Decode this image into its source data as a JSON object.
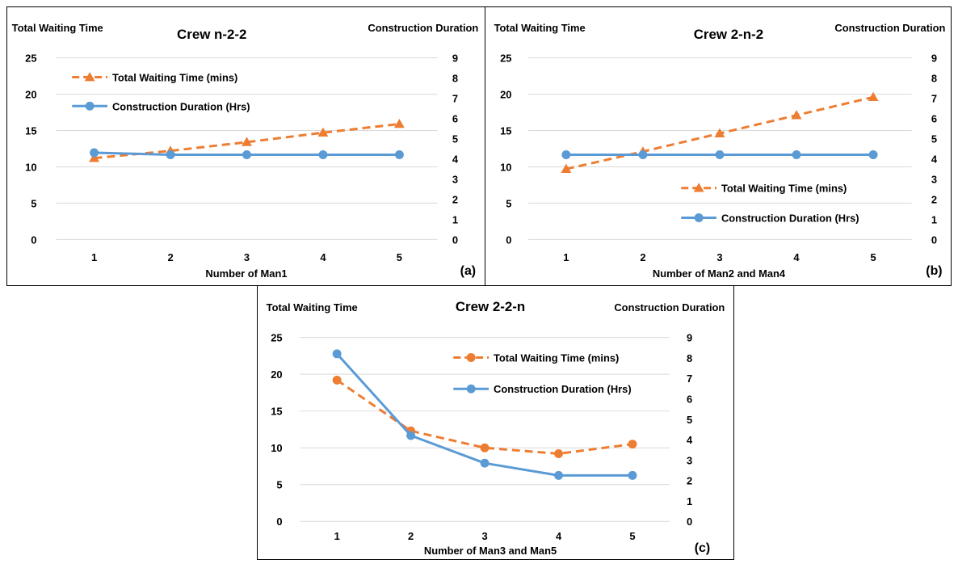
{
  "colors": {
    "waiting": "#ED7D31",
    "duration": "#5B9BD5",
    "grid": "#D9D9D9"
  },
  "chart_data": [
    {
      "type": "line",
      "panel_tag": "(a)",
      "title": "Crew n-2-2",
      "ylabel_left": "Total Waiting Time",
      "ylabel_right": "Construction Duration",
      "xlabel": "Number of Man1",
      "categories": [
        "1",
        "2",
        "3",
        "4",
        "5"
      ],
      "ylim_left": [
        0,
        25
      ],
      "yticks_left": [
        "0",
        "5",
        "10",
        "15",
        "20",
        "25"
      ],
      "ylim_right": [
        0,
        9
      ],
      "yticks_right": [
        "0",
        "1",
        "2",
        "3",
        "4",
        "5",
        "6",
        "7",
        "8",
        "9"
      ],
      "grid": "horizontal",
      "legend": "top-left",
      "series": [
        {
          "name": "Total Waiting Time (mins)",
          "axis": "left",
          "style": "dashed",
          "marker": "triangle",
          "color": "#ED7D31",
          "values": [
            11.2,
            12.2,
            13.4,
            14.7,
            15.9
          ]
        },
        {
          "name": "Construction Duration (Hrs)",
          "axis": "right",
          "style": "solid",
          "marker": "circle",
          "color": "#5B9BD5",
          "values": [
            4.3,
            4.2,
            4.2,
            4.2,
            4.2
          ]
        }
      ]
    },
    {
      "type": "line",
      "panel_tag": "(b)",
      "title": "Crew 2-n-2",
      "ylabel_left": "Total Waiting Time",
      "ylabel_right": "Construction Duration",
      "xlabel": "Number of Man2 and Man4",
      "categories": [
        "1",
        "2",
        "3",
        "4",
        "5"
      ],
      "ylim_left": [
        0,
        25
      ],
      "yticks_left": [
        "0",
        "5",
        "10",
        "15",
        "20",
        "25"
      ],
      "ylim_right": [
        0,
        9
      ],
      "yticks_right": [
        "0",
        "1",
        "2",
        "3",
        "4",
        "5",
        "6",
        "7",
        "8",
        "9"
      ],
      "grid": "horizontal",
      "legend": "bottom-right",
      "series": [
        {
          "name": "Total Waiting Time (mins)",
          "axis": "left",
          "style": "dashed",
          "marker": "triangle",
          "color": "#ED7D31",
          "values": [
            9.7,
            12.1,
            14.6,
            17.1,
            19.6
          ]
        },
        {
          "name": "Construction Duration (Hrs)",
          "axis": "right",
          "style": "solid",
          "marker": "circle",
          "color": "#5B9BD5",
          "values": [
            4.2,
            4.2,
            4.2,
            4.2,
            4.2
          ]
        }
      ]
    },
    {
      "type": "line",
      "panel_tag": "(c)",
      "title": "Crew 2-2-n",
      "ylabel_left": "Total Waiting Time",
      "ylabel_right": "Construction Duration",
      "xlabel": "Number of Man3 and Man5",
      "categories": [
        "1",
        "2",
        "3",
        "4",
        "5"
      ],
      "ylim_left": [
        0,
        25
      ],
      "yticks_left": [
        "0",
        "5",
        "10",
        "15",
        "20",
        "25"
      ],
      "ylim_right": [
        0,
        9
      ],
      "yticks_right": [
        "0",
        "1",
        "2",
        "3",
        "4",
        "5",
        "6",
        "7",
        "8",
        "9"
      ],
      "grid": "horizontal",
      "legend": "top-right",
      "series": [
        {
          "name": "Total Waiting Time (mins)",
          "axis": "left",
          "style": "dashed",
          "marker": "circle",
          "color": "#ED7D31",
          "values": [
            19.2,
            12.3,
            10.0,
            9.2,
            10.5
          ]
        },
        {
          "name": "Construction Duration (Hrs)",
          "axis": "right",
          "style": "solid",
          "marker": "circle",
          "color": "#5B9BD5",
          "values": [
            8.2,
            4.2,
            2.85,
            2.25,
            2.25
          ]
        }
      ]
    }
  ]
}
